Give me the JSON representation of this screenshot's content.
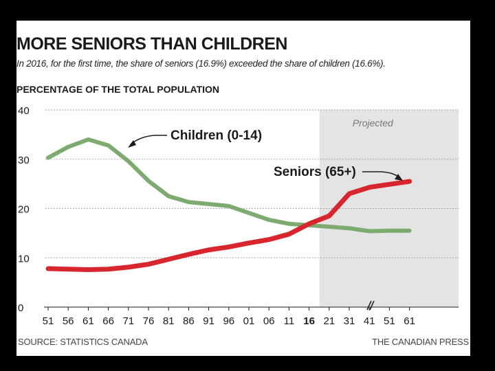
{
  "header": {
    "title": "MORE SENIORS THAN CHILDREN",
    "subtitle": "In 2016, for the first time, the share of seniors (16.9%) exceeded the share of children (16.6%)."
  },
  "footer": {
    "source": "SOURCE: STATISTICS CANADA",
    "credit": "THE CANADIAN PRESS"
  },
  "colors": {
    "background": "#000000",
    "panel": "#ffffff",
    "children": "#7daa6e",
    "seniors": "#d7262d",
    "projected_shade": "#e4e4e4",
    "grid": "#888888"
  },
  "chart_data": {
    "type": "line",
    "ylabel": "PERCENTAGE OF THE TOTAL POPULATION",
    "ylim": [
      0,
      40
    ],
    "yticks": [
      "0",
      "10",
      "20",
      "30",
      "40"
    ],
    "categories": [
      "51",
      "56",
      "61",
      "66",
      "71",
      "76",
      "81",
      "86",
      "91",
      "96",
      "01",
      "06",
      "11",
      "16",
      "21",
      "31",
      "41",
      "51",
      "61"
    ],
    "highlight_category": "16",
    "axis_break_between": [
      "21",
      "31"
    ],
    "grid": "dotted horizontal",
    "projected": {
      "label": "Projected",
      "from_category_index": 13.5
    },
    "series": [
      {
        "name": "Children (0-14)",
        "color": "#7daa6e",
        "values": [
          30.3,
          32.5,
          34.0,
          32.8,
          29.6,
          25.6,
          22.5,
          21.3,
          20.9,
          20.5,
          19.1,
          17.7,
          16.9,
          16.6,
          16.3,
          16.0,
          15.4,
          15.5,
          15.5
        ]
      },
      {
        "name": "Seniors (65+)",
        "color": "#d7262d",
        "values": [
          7.8,
          7.7,
          7.6,
          7.7,
          8.1,
          8.7,
          9.7,
          10.7,
          11.6,
          12.2,
          13.0,
          13.7,
          14.8,
          16.9,
          18.5,
          23.0,
          24.3,
          24.9,
          25.5
        ]
      }
    ]
  }
}
